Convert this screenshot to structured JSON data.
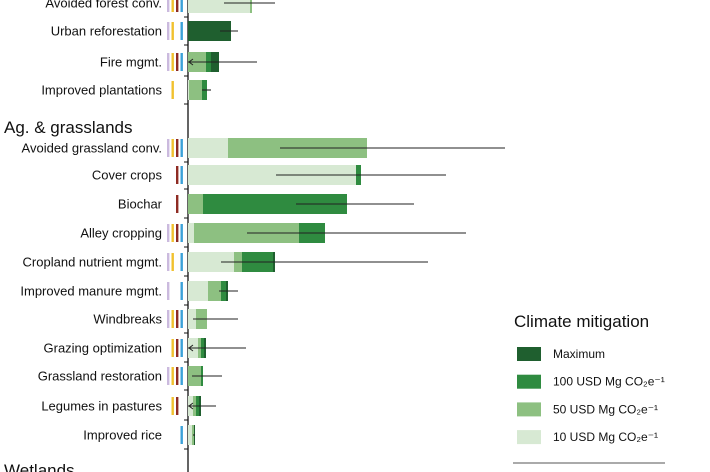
{
  "chart_data": {
    "type": "bar",
    "orientation": "horizontal",
    "stacked": "cumulative thresholds",
    "legend": {
      "title": "Climate mitigation",
      "placement": "bottom-right",
      "entries": [
        {
          "key": "max",
          "label": "Maximum",
          "color": "#1f5f2f"
        },
        {
          "key": "p100",
          "label": "100 USD Mg CO₂e⁻¹",
          "color": "#2f8b40"
        },
        {
          "key": "p50",
          "label": "50 USD Mg CO₂e⁻¹",
          "color": "#8dc081"
        },
        {
          "key": "p10",
          "label": "10 USD Mg CO₂e⁻¹",
          "color": "#d7e9d3"
        }
      ]
    },
    "marker_colors": {
      "lavender": "#cbbade",
      "yellow": "#f1c12e",
      "red": "#8e2b23",
      "blue": "#3ba1d9"
    },
    "groups": [
      {
        "title": "",
        "rows": [
          {
            "label": "Avoided forest conv.",
            "markers": [
              "lavender",
              "yellow",
              "red",
              "blue"
            ],
            "p10": 62,
            "p50": 64,
            "p100": 64,
            "max": 64,
            "err": [
              36,
              87
            ],
            "err_open_left": false
          },
          {
            "label": "Urban reforestation",
            "markers": [
              "lavender",
              "yellow",
              "blue"
            ],
            "p10": 0,
            "p50": 0,
            "p100": 0,
            "max": 43,
            "err": [
              32,
              50
            ],
            "err_open_left": false
          },
          {
            "label": "Fire mgmt.",
            "markers": [
              "lavender",
              "yellow",
              "red",
              "blue"
            ],
            "p10": 0,
            "p50": 18,
            "p100": 23,
            "max": 31,
            "err": [
              0,
              69
            ],
            "err_open_left": true
          },
          {
            "label": "Improved plantations",
            "markers": [
              "yellow"
            ],
            "p10": 1,
            "p50": 14,
            "p100": 19,
            "max": 19,
            "err": [
              14,
              23
            ],
            "err_open_left": false
          }
        ]
      },
      {
        "title": "Ag. & grasslands",
        "rows": [
          {
            "label": "Avoided grassland conv.",
            "markers": [
              "lavender",
              "yellow",
              "red",
              "blue"
            ],
            "p10": 40,
            "p50": 179,
            "p100": 179,
            "max": 179,
            "err": [
              92,
              317
            ],
            "err_open_left": false
          },
          {
            "label": "Cover crops",
            "markers": [
              "red",
              "blue"
            ],
            "p10": 168,
            "p50": 168,
            "p100": 173,
            "max": 173,
            "err": [
              88,
              258
            ],
            "err_open_left": false
          },
          {
            "label": "Biochar",
            "markers": [
              "red"
            ],
            "p10": 0,
            "p50": 15,
            "p100": 159,
            "max": 159,
            "err": [
              108,
              226
            ],
            "err_open_left": false
          },
          {
            "label": "Alley cropping",
            "markers": [
              "lavender",
              "yellow",
              "red",
              "blue"
            ],
            "p10": 6,
            "p50": 111,
            "p100": 137,
            "max": 137,
            "err": [
              59,
              278
            ],
            "err_open_left": false
          },
          {
            "label": "Cropland nutrient mgmt.",
            "markers": [
              "lavender",
              "yellow",
              "blue"
            ],
            "p10": 46,
            "p50": 54,
            "p100": 85,
            "max": 87,
            "err": [
              33,
              240
            ],
            "err_open_left": false
          },
          {
            "label": "Improved manure mgmt.",
            "markers": [
              "lavender",
              "blue"
            ],
            "p10": 20,
            "p50": 33,
            "p100": 38,
            "max": 40,
            "err": [
              31,
              50
            ],
            "err_open_left": false
          },
          {
            "label": "Windbreaks",
            "markers": [
              "lavender",
              "yellow",
              "red",
              "blue"
            ],
            "p10": 8,
            "p50": 19,
            "p100": 19,
            "max": 19,
            "err": [
              5,
              50
            ],
            "err_open_left": false
          },
          {
            "label": "Grazing optimization",
            "markers": [
              "yellow",
              "red",
              "blue"
            ],
            "p10": 10,
            "p50": 13,
            "p100": 16,
            "max": 18,
            "err": [
              0,
              58
            ],
            "err_open_left": true
          },
          {
            "label": "Grassland restoration",
            "markers": [
              "lavender",
              "yellow",
              "red",
              "blue"
            ],
            "p10": 0,
            "p50": 13,
            "p100": 15,
            "max": 15,
            "err": [
              4,
              34
            ],
            "err_open_left": false
          },
          {
            "label": "Legumes in pastures",
            "markers": [
              "yellow",
              "red"
            ],
            "p10": 5,
            "p50": 8,
            "p100": 11,
            "max": 13,
            "err": [
              0,
              28
            ],
            "err_open_left": true
          },
          {
            "label": "Improved rice",
            "markers": [
              "blue"
            ],
            "p10": 4,
            "p50": 6,
            "p100": 6,
            "max": 7,
            "err": [
              5,
              7
            ],
            "err_open_left": false
          }
        ]
      },
      {
        "title": "Wetlands",
        "rows": []
      }
    ]
  }
}
